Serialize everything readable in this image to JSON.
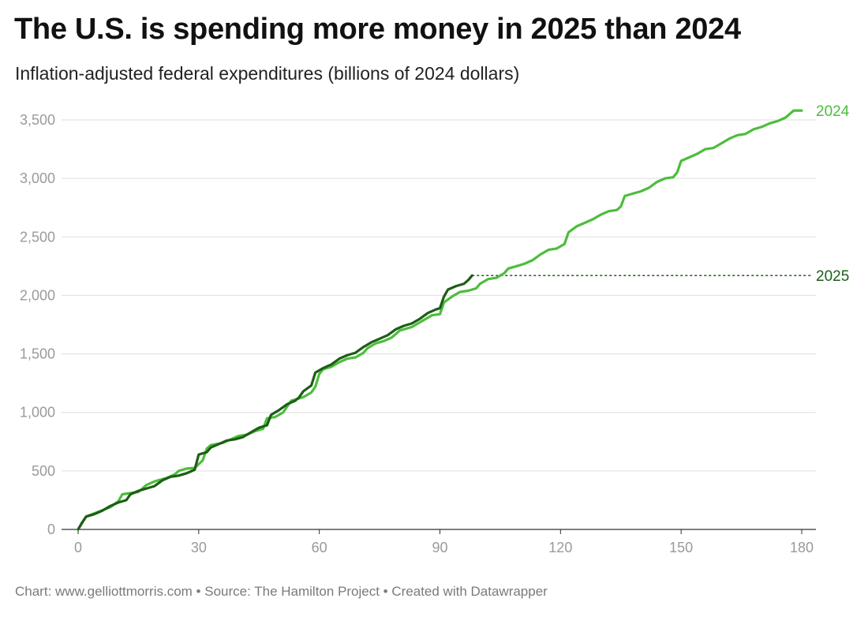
{
  "header": {
    "title": "The U.S. is spending more money in 2025 than 2024",
    "subtitle": "Inflation-adjusted federal expenditures (billions of 2024 dollars)"
  },
  "footer": {
    "credit": "Chart: www.gelliottmorris.com • Source: The Hamilton Project • Created with Datawrapper"
  },
  "chart_data": {
    "type": "line",
    "title": "The U.S. is spending more money in 2025 than 2024",
    "subtitle": "Inflation-adjusted federal expenditures (billions of 2024 dollars)",
    "xlabel": "",
    "ylabel": "",
    "xlim": [
      0,
      180
    ],
    "ylim": [
      0,
      3500
    ],
    "x_ticks": [
      0,
      30,
      60,
      90,
      120,
      150,
      180
    ],
    "x_tick_labels": [
      "0",
      "30",
      "60",
      "90",
      "120",
      "150",
      "180"
    ],
    "y_ticks": [
      0,
      500,
      1000,
      1500,
      2000,
      2500,
      3000,
      3500
    ],
    "y_tick_labels": [
      "0",
      "500",
      "1,000",
      "1,500",
      "2,000",
      "2,500",
      "3,000",
      "3,500"
    ],
    "grid": true,
    "series": [
      {
        "name": "2024",
        "label": "2024",
        "color": "#4dbd3c",
        "points": [
          [
            0,
            0
          ],
          [
            2,
            110
          ],
          [
            5,
            150
          ],
          [
            8,
            190
          ],
          [
            10,
            240
          ],
          [
            11,
            300
          ],
          [
            15,
            320
          ],
          [
            17,
            380
          ],
          [
            19,
            410
          ],
          [
            22,
            440
          ],
          [
            24,
            470
          ],
          [
            25,
            500
          ],
          [
            27,
            520
          ],
          [
            29,
            525
          ],
          [
            31,
            590
          ],
          [
            32,
            690
          ],
          [
            33,
            720
          ],
          [
            36,
            740
          ],
          [
            38,
            770
          ],
          [
            40,
            800
          ],
          [
            42,
            810
          ],
          [
            44,
            840
          ],
          [
            46,
            860
          ],
          [
            47,
            950
          ],
          [
            49,
            960
          ],
          [
            51,
            1000
          ],
          [
            53,
            1100
          ],
          [
            56,
            1130
          ],
          [
            58,
            1170
          ],
          [
            59,
            1220
          ],
          [
            60,
            1330
          ],
          [
            61,
            1370
          ],
          [
            63,
            1390
          ],
          [
            65,
            1430
          ],
          [
            67,
            1460
          ],
          [
            69,
            1470
          ],
          [
            71,
            1510
          ],
          [
            72,
            1550
          ],
          [
            74,
            1590
          ],
          [
            76,
            1610
          ],
          [
            78,
            1640
          ],
          [
            80,
            1700
          ],
          [
            83,
            1730
          ],
          [
            86,
            1790
          ],
          [
            88,
            1830
          ],
          [
            90,
            1840
          ],
          [
            91,
            1940
          ],
          [
            93,
            1990
          ],
          [
            95,
            2030
          ],
          [
            97,
            2040
          ],
          [
            99,
            2060
          ],
          [
            100,
            2100
          ],
          [
            102,
            2140
          ],
          [
            104,
            2150
          ],
          [
            106,
            2190
          ],
          [
            107,
            2230
          ],
          [
            109,
            2250
          ],
          [
            111,
            2270
          ],
          [
            113,
            2300
          ],
          [
            115,
            2350
          ],
          [
            117,
            2390
          ],
          [
            119,
            2400
          ],
          [
            121,
            2440
          ],
          [
            122,
            2540
          ],
          [
            124,
            2590
          ],
          [
            126,
            2620
          ],
          [
            128,
            2650
          ],
          [
            130,
            2690
          ],
          [
            132,
            2720
          ],
          [
            134,
            2730
          ],
          [
            135,
            2760
          ],
          [
            136,
            2850
          ],
          [
            138,
            2870
          ],
          [
            140,
            2890
          ],
          [
            142,
            2920
          ],
          [
            144,
            2970
          ],
          [
            146,
            3000
          ],
          [
            148,
            3010
          ],
          [
            149,
            3050
          ],
          [
            150,
            3150
          ],
          [
            152,
            3180
          ],
          [
            154,
            3210
          ],
          [
            156,
            3250
          ],
          [
            158,
            3260
          ],
          [
            160,
            3300
          ],
          [
            162,
            3340
          ],
          [
            164,
            3370
          ],
          [
            166,
            3380
          ],
          [
            168,
            3420
          ],
          [
            170,
            3440
          ],
          [
            172,
            3470
          ],
          [
            174,
            3490
          ],
          [
            176,
            3520
          ],
          [
            178,
            3580
          ],
          [
            180,
            3580
          ]
        ]
      },
      {
        "name": "2025",
        "label": "2025",
        "color": "#1c5e16",
        "points": [
          [
            0,
            0
          ],
          [
            1,
            60
          ],
          [
            2,
            110
          ],
          [
            4,
            130
          ],
          [
            6,
            160
          ],
          [
            8,
            200
          ],
          [
            10,
            230
          ],
          [
            12,
            250
          ],
          [
            13,
            300
          ],
          [
            15,
            330
          ],
          [
            17,
            350
          ],
          [
            19,
            370
          ],
          [
            21,
            420
          ],
          [
            23,
            450
          ],
          [
            25,
            460
          ],
          [
            27,
            480
          ],
          [
            29,
            510
          ],
          [
            30,
            640
          ],
          [
            32,
            660
          ],
          [
            33,
            700
          ],
          [
            35,
            730
          ],
          [
            37,
            760
          ],
          [
            39,
            770
          ],
          [
            41,
            790
          ],
          [
            43,
            830
          ],
          [
            45,
            870
          ],
          [
            47,
            890
          ],
          [
            48,
            980
          ],
          [
            50,
            1020
          ],
          [
            52,
            1070
          ],
          [
            54,
            1100
          ],
          [
            55,
            1130
          ],
          [
            56,
            1180
          ],
          [
            58,
            1230
          ],
          [
            59,
            1340
          ],
          [
            61,
            1380
          ],
          [
            63,
            1410
          ],
          [
            65,
            1460
          ],
          [
            67,
            1490
          ],
          [
            69,
            1510
          ],
          [
            71,
            1560
          ],
          [
            73,
            1600
          ],
          [
            75,
            1630
          ],
          [
            77,
            1660
          ],
          [
            79,
            1710
          ],
          [
            81,
            1740
          ],
          [
            83,
            1760
          ],
          [
            85,
            1800
          ],
          [
            87,
            1850
          ],
          [
            89,
            1880
          ],
          [
            90,
            1890
          ],
          [
            91,
            1990
          ],
          [
            92,
            2050
          ],
          [
            94,
            2080
          ],
          [
            96,
            2100
          ],
          [
            97,
            2130
          ],
          [
            98,
            2170
          ]
        ]
      }
    ],
    "annotations": [
      {
        "type": "reference-line",
        "series": "2025",
        "y": 2170,
        "x_from": 98,
        "x_to": 180,
        "style": "dotted"
      }
    ]
  }
}
